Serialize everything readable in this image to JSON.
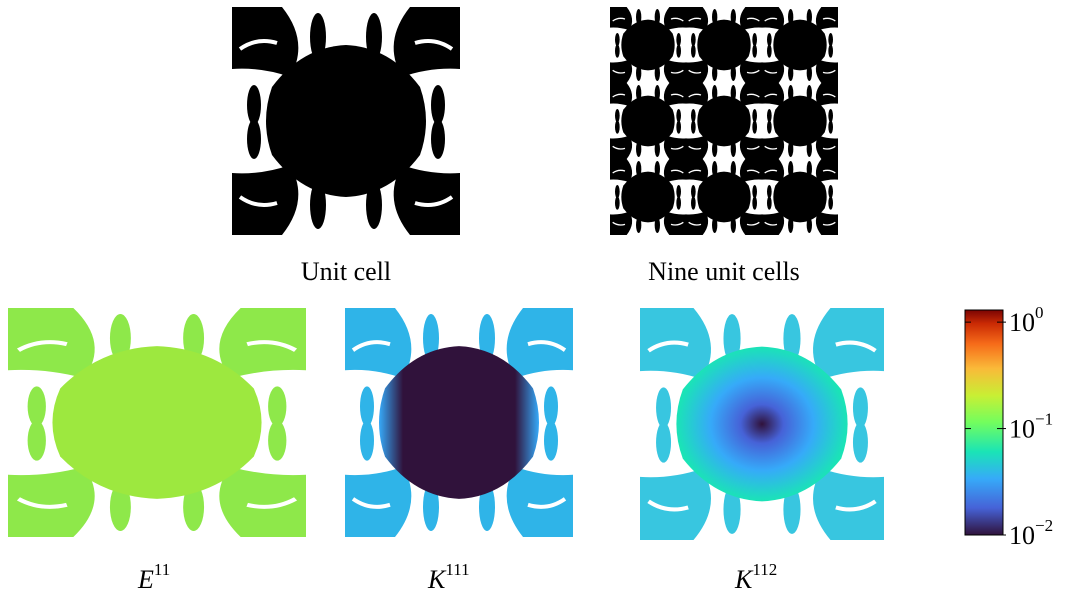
{
  "top_panels": [
    {
      "caption": "Unit cell"
    },
    {
      "caption": "Nine unit cells"
    }
  ],
  "bottom_panels": [
    {
      "symbol": "E",
      "superscript": "11"
    },
    {
      "symbol": "K",
      "superscript": "111"
    },
    {
      "symbol": "K",
      "superscript": "112"
    }
  ],
  "colorbar": {
    "scale": "log",
    "lim": [
      0.01,
      1.3
    ],
    "ticks": [
      {
        "value": 1,
        "base": "10",
        "exponent": "0"
      },
      {
        "value": 0.1,
        "base": "10",
        "exponent": "−1"
      },
      {
        "value": 0.01,
        "base": "10",
        "exponent": "−2"
      }
    ]
  }
}
